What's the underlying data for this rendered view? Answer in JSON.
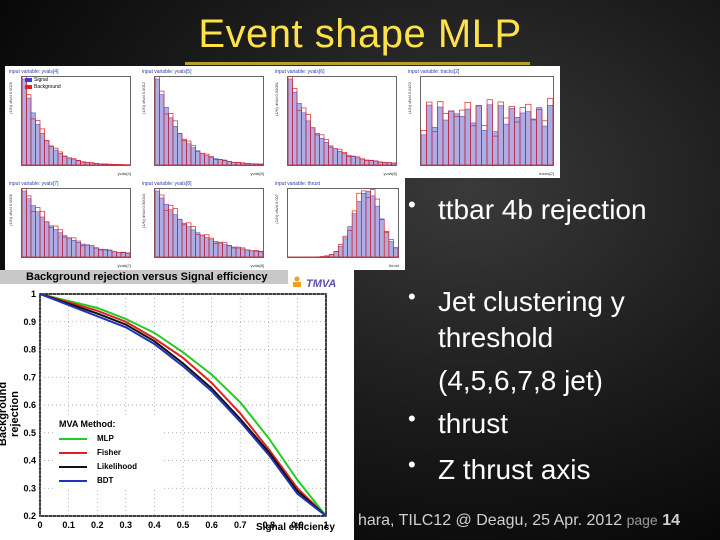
{
  "slide": {
    "title": "Event shape MLP",
    "bullets": [
      "ttbar 4b rejection",
      "Jet clustering y threshold (4,5,6,7,8 jet)",
      "thrust",
      "Z thrust axis"
    ],
    "bullet_lines": {
      "b1": "ttbar 4b rejection",
      "b2_l1": "Jet clustering y",
      "b2_l2": "threshold",
      "b2_l3": "(4,5,6,7,8 jet)",
      "b3": "thrust",
      "b4": "Z thrust axis"
    },
    "footer": "hara, TILC12 @ Deagu, 25 Apr. 2012",
    "page_label": "page",
    "page_number": "14"
  },
  "input_plots": [
    {
      "title": "input variable: yvals[4]",
      "xlabel": "yvals[4]",
      "ylabel": "(1/N) dN/d 0.0025",
      "legend": [
        "Signal",
        "Background"
      ]
    },
    {
      "title": "input variable: yvals[5]",
      "xlabel": "yvals[5]",
      "ylabel": "(1/N) dN/d 0.0012"
    },
    {
      "title": "input variable: yvals[6]",
      "xlabel": "yvals[6]",
      "ylabel": "(1/N) dN/d 0.00081"
    },
    {
      "title": "input variable: tracks[2]",
      "xlabel": "tracks[2]",
      "ylabel": "(1/N) dN/d 0.0422"
    },
    {
      "title": "input variable: yvals[7]",
      "xlabel": "yvals[7]",
      "ylabel": "(1/N) dN/d 0.0005"
    },
    {
      "title": "input variable: yvals[8]",
      "xlabel": "yvals[8]",
      "ylabel": "(1/N) dN/d 0.00034"
    },
    {
      "title": "input variable: thrust",
      "xlabel": "thrust",
      "ylabel": "(1/N) dN/d 0.007"
    }
  ],
  "colors": {
    "signal": "#3344cc",
    "background": "#dd2222",
    "title": "#ffe14a"
  },
  "chart_data": {
    "type": "line",
    "title": "Background rejection versus Signal efficiency",
    "xlabel": "Signal efficiency",
    "ylabel": "Background rejection",
    "xlim": [
      0,
      1
    ],
    "ylim": [
      0.2,
      1
    ],
    "x_ticks": [
      "0",
      "0.1",
      "0.2",
      "0.3",
      "0.4",
      "0.5",
      "0.6",
      "0.7",
      "0.8",
      "0.9",
      "1"
    ],
    "y_ticks": [
      "0.2",
      "0.3",
      "0.4",
      "0.5",
      "0.6",
      "0.7",
      "0.8",
      "0.9",
      "1"
    ],
    "legend_title": "MVA Method:",
    "legend_position": "bottom-left",
    "logo": "TMVA",
    "x": [
      0,
      0.1,
      0.2,
      0.3,
      0.4,
      0.5,
      0.6,
      0.7,
      0.8,
      0.9,
      1.0
    ],
    "series": [
      {
        "name": "MLP",
        "color": "#22cc22",
        "values": [
          1.0,
          0.975,
          0.95,
          0.91,
          0.86,
          0.79,
          0.71,
          0.61,
          0.48,
          0.33,
          0.2
        ]
      },
      {
        "name": "Fisher",
        "color": "#dd2222",
        "values": [
          1.0,
          0.97,
          0.94,
          0.9,
          0.84,
          0.77,
          0.68,
          0.57,
          0.44,
          0.3,
          0.2
        ]
      },
      {
        "name": "Likelihood",
        "color": "#111111",
        "values": [
          1.0,
          0.965,
          0.93,
          0.89,
          0.83,
          0.75,
          0.66,
          0.55,
          0.43,
          0.29,
          0.2
        ]
      },
      {
        "name": "BDT",
        "color": "#2233bb",
        "values": [
          1.0,
          0.96,
          0.92,
          0.88,
          0.82,
          0.74,
          0.65,
          0.54,
          0.42,
          0.28,
          0.2
        ]
      }
    ]
  }
}
